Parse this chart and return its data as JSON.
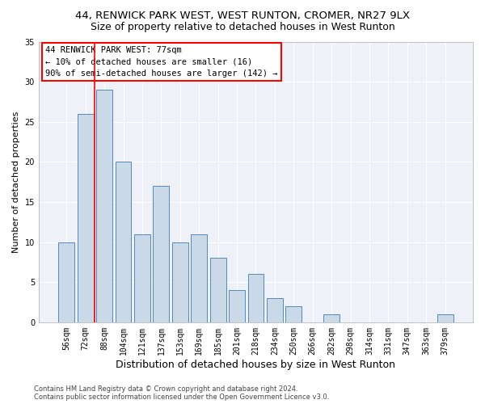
{
  "title1": "44, RENWICK PARK WEST, WEST RUNTON, CROMER, NR27 9LX",
  "title2": "Size of property relative to detached houses in West Runton",
  "xlabel": "Distribution of detached houses by size in West Runton",
  "ylabel": "Number of detached properties",
  "categories": [
    "56sqm",
    "72sqm",
    "88sqm",
    "104sqm",
    "121sqm",
    "137sqm",
    "153sqm",
    "169sqm",
    "185sqm",
    "201sqm",
    "218sqm",
    "234sqm",
    "250sqm",
    "266sqm",
    "282sqm",
    "298sqm",
    "314sqm",
    "331sqm",
    "347sqm",
    "363sqm",
    "379sqm"
  ],
  "values": [
    10,
    26,
    29,
    20,
    11,
    17,
    10,
    11,
    8,
    4,
    6,
    3,
    2,
    0,
    1,
    0,
    0,
    0,
    0,
    0,
    1
  ],
  "bar_color": "#c9d9e8",
  "bar_edge_color": "#5588bb",
  "red_line_x": 1.5,
  "ylim": [
    0,
    35
  ],
  "yticks": [
    0,
    5,
    10,
    15,
    20,
    25,
    30,
    35
  ],
  "annotation_box_text": "44 RENWICK PARK WEST: 77sqm\n← 10% of detached houses are smaller (16)\n90% of semi-detached houses are larger (142) →",
  "footnote1": "Contains HM Land Registry data © Crown copyright and database right 2024.",
  "footnote2": "Contains public sector information licensed under the Open Government Licence v3.0.",
  "background_color": "#eef2f8",
  "grid_color": "#ffffff",
  "title_fontsize": 9.5,
  "subtitle_fontsize": 9,
  "tick_fontsize": 7,
  "xlabel_fontsize": 9,
  "ylabel_fontsize": 8,
  "annotation_fontsize": 7.5,
  "footnote_fontsize": 6
}
